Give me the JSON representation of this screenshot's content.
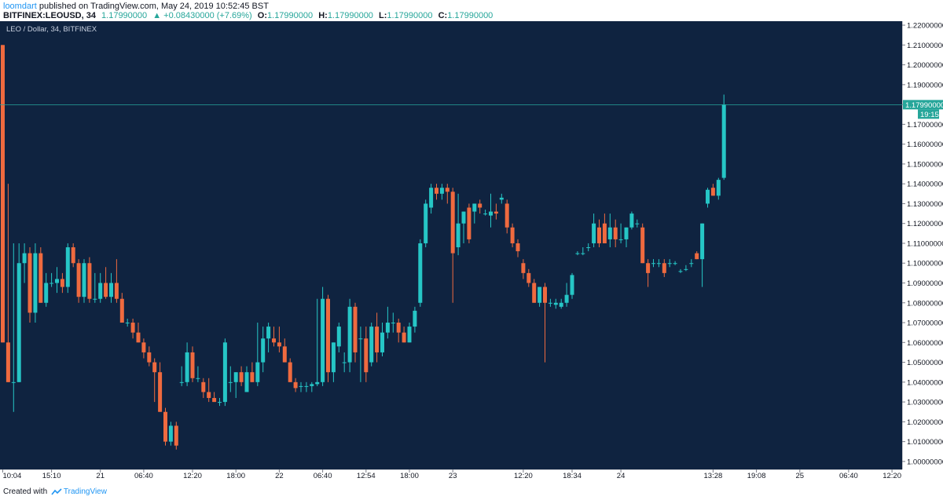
{
  "header": {
    "user": "loomdart",
    "published_text": " published on TradingView.com, May 24, 2019 10:52:45 BST",
    "symbol": "BITFINEX:LEOUSD, 34",
    "last": "1.17990000",
    "change": "+0.08430000 (+7.69%)",
    "o_label": "O:",
    "o_value": "1.17990000",
    "h_label": "H:",
    "h_value": "1.17990000",
    "l_label": "L:",
    "l_value": "1.17990000",
    "c_label": "C:",
    "c_value": "1.17990000"
  },
  "footer": {
    "created": "Created with",
    "brand": "TradingView"
  },
  "colors": {
    "background": "#131722",
    "pane": "#0f2340",
    "up": "#26c6c6",
    "down": "#ef6a3f",
    "axis_text": "#131722",
    "price_line": "#26a69a"
  },
  "icons": {
    "up_arrow": "triangle-up-icon",
    "brand": "tradingview-logo-icon"
  },
  "chart_data": {
    "type": "candlestick",
    "title": "LEO / Dollar, 34, BITFINEX",
    "ylim": [
      0.996,
      1.222
    ],
    "y_ticks": [
      "1.00000000",
      "1.01000000",
      "1.02000000",
      "1.03000000",
      "1.04000000",
      "1.05000000",
      "1.06000000",
      "1.07000000",
      "1.08000000",
      "1.09000000",
      "1.10000000",
      "1.11000000",
      "1.12000000",
      "1.13000000",
      "1.14000000",
      "1.15000000",
      "1.16000000",
      "1.17000000",
      "1.18000000",
      "1.19000000",
      "1.20000000",
      "1.21000000",
      "1.22000000"
    ],
    "x_ticks": [
      {
        "label": "10:04",
        "bar": 0
      },
      {
        "label": "15:10",
        "bar": 9
      },
      {
        "label": "21",
        "bar": 18
      },
      {
        "label": "06:40",
        "bar": 26
      },
      {
        "label": "12:20",
        "bar": 35
      },
      {
        "label": "18:00",
        "bar": 43
      },
      {
        "label": "22",
        "bar": 51
      },
      {
        "label": "06:40",
        "bar": 59
      },
      {
        "label": "12:54",
        "bar": 67
      },
      {
        "label": "18:00",
        "bar": 75
      },
      {
        "label": "23",
        "bar": 83
      },
      {
        "label": "12:20",
        "bar": 96
      },
      {
        "label": "18:34",
        "bar": 105
      },
      {
        "label": "24",
        "bar": 114
      },
      {
        "label": "13:28",
        "bar": 131
      },
      {
        "label": "19:08",
        "bar": 139
      },
      {
        "label": "25",
        "bar": 147
      },
      {
        "label": "06:40",
        "bar": 156
      },
      {
        "label": "12:20",
        "bar": 164
      }
    ],
    "last_price_label": "1.17990000",
    "countdown_label": "19:15",
    "last_price": 1.1799,
    "candles": [
      {
        "o": 1.21,
        "h": 1.21,
        "l": 1.06,
        "c": 1.06
      },
      {
        "o": 1.06,
        "h": 1.14,
        "l": 1.04,
        "c": 1.04
      },
      {
        "o": 1.04,
        "h": 1.11,
        "l": 1.025,
        "c": 1.04
      },
      {
        "o": 1.04,
        "h": 1.11,
        "l": 1.04,
        "c": 1.1
      },
      {
        "o": 1.1,
        "h": 1.11,
        "l": 1.09,
        "c": 1.105
      },
      {
        "o": 1.105,
        "h": 1.108,
        "l": 1.07,
        "c": 1.075
      },
      {
        "o": 1.075,
        "h": 1.11,
        "l": 1.07,
        "c": 1.105
      },
      {
        "o": 1.105,
        "h": 1.108,
        "l": 1.08,
        "c": 1.08
      },
      {
        "o": 1.08,
        "h": 1.095,
        "l": 1.078,
        "c": 1.09
      },
      {
        "o": 1.09,
        "h": 1.095,
        "l": 1.088,
        "c": 1.09
      },
      {
        "o": 1.09,
        "h": 1.098,
        "l": 1.085,
        "c": 1.092
      },
      {
        "o": 1.092,
        "h": 1.095,
        "l": 1.085,
        "c": 1.088
      },
      {
        "o": 1.088,
        "h": 1.11,
        "l": 1.085,
        "c": 1.108
      },
      {
        "o": 1.108,
        "h": 1.11,
        "l": 1.098,
        "c": 1.1
      },
      {
        "o": 1.1,
        "h": 1.102,
        "l": 1.08,
        "c": 1.083
      },
      {
        "o": 1.083,
        "h": 1.102,
        "l": 1.08,
        "c": 1.1
      },
      {
        "o": 1.1,
        "h": 1.103,
        "l": 1.08,
        "c": 1.082
      },
      {
        "o": 1.082,
        "h": 1.095,
        "l": 1.08,
        "c": 1.082
      },
      {
        "o": 1.082,
        "h": 1.095,
        "l": 1.08,
        "c": 1.09
      },
      {
        "o": 1.09,
        "h": 1.098,
        "l": 1.082,
        "c": 1.083
      },
      {
        "o": 1.083,
        "h": 1.095,
        "l": 1.08,
        "c": 1.09
      },
      {
        "o": 1.09,
        "h": 1.102,
        "l": 1.08,
        "c": 1.082
      },
      {
        "o": 1.082,
        "h": 1.085,
        "l": 1.07,
        "c": 1.07
      },
      {
        "o": 1.07,
        "h": 1.072,
        "l": 1.068,
        "c": 1.07
      },
      {
        "o": 1.07,
        "h": 1.072,
        "l": 1.062,
        "c": 1.065
      },
      {
        "o": 1.065,
        "h": 1.07,
        "l": 1.06,
        "c": 1.06
      },
      {
        "o": 1.06,
        "h": 1.062,
        "l": 1.052,
        "c": 1.055
      },
      {
        "o": 1.055,
        "h": 1.058,
        "l": 1.048,
        "c": 1.05
      },
      {
        "o": 1.05,
        "h": 1.052,
        "l": 1.03,
        "c": 1.045
      },
      {
        "o": 1.045,
        "h": 1.05,
        "l": 1.025,
        "c": 1.025
      },
      {
        "o": 1.025,
        "h": 1.027,
        "l": 1.008,
        "c": 1.01
      },
      {
        "o": 1.01,
        "h": 1.02,
        "l": 1.008,
        "c": 1.018
      },
      {
        "o": 1.018,
        "h": 1.02,
        "l": 1.006,
        "c": 1.008
      },
      {
        "o": 1.04,
        "h": 1.048,
        "l": 1.038,
        "c": 1.04
      },
      {
        "o": 1.04,
        "h": 1.06,
        "l": 1.038,
        "c": 1.055
      },
      {
        "o": 1.055,
        "h": 1.058,
        "l": 1.04,
        "c": 1.042
      },
      {
        "o": 1.042,
        "h": 1.048,
        "l": 1.04,
        "c": 1.042
      },
      {
        "o": 1.04,
        "h": 1.042,
        "l": 1.032,
        "c": 1.035
      },
      {
        "o": 1.035,
        "h": 1.042,
        "l": 1.03,
        "c": 1.032
      },
      {
        "o": 1.032,
        "h": 1.035,
        "l": 1.03,
        "c": 1.03
      },
      {
        "o": 1.03,
        "h": 1.032,
        "l": 1.028,
        "c": 1.03
      },
      {
        "o": 1.03,
        "h": 1.062,
        "l": 1.028,
        "c": 1.06
      },
      {
        "o": 1.04,
        "h": 1.048,
        "l": 1.035,
        "c": 1.04
      },
      {
        "o": 1.04,
        "h": 1.045,
        "l": 1.032,
        "c": 1.045
      },
      {
        "o": 1.045,
        "h": 1.048,
        "l": 1.038,
        "c": 1.04
      },
      {
        "o": 1.035,
        "h": 1.048,
        "l": 1.035,
        "c": 1.045
      },
      {
        "o": 1.045,
        "h": 1.05,
        "l": 1.04,
        "c": 1.04
      },
      {
        "o": 1.04,
        "h": 1.07,
        "l": 1.038,
        "c": 1.05
      },
      {
        "o": 1.05,
        "h": 1.068,
        "l": 1.045,
        "c": 1.062
      },
      {
        "o": 1.062,
        "h": 1.07,
        "l": 1.055,
        "c": 1.068
      },
      {
        "o": 1.062,
        "h": 1.068,
        "l": 1.058,
        "c": 1.06
      },
      {
        "o": 1.06,
        "h": 1.068,
        "l": 1.055,
        "c": 1.058
      },
      {
        "o": 1.058,
        "h": 1.062,
        "l": 1.05,
        "c": 1.05
      },
      {
        "o": 1.05,
        "h": 1.052,
        "l": 1.04,
        "c": 1.04
      },
      {
        "o": 1.04,
        "h": 1.042,
        "l": 1.035,
        "c": 1.037
      },
      {
        "o": 1.038,
        "h": 1.04,
        "l": 1.035,
        "c": 1.038
      },
      {
        "o": 1.038,
        "h": 1.04,
        "l": 1.035,
        "c": 1.038
      },
      {
        "o": 1.038,
        "h": 1.04,
        "l": 1.035,
        "c": 1.039
      },
      {
        "o": 1.039,
        "h": 1.082,
        "l": 1.038,
        "c": 1.04
      },
      {
        "o": 1.04,
        "h": 1.088,
        "l": 1.038,
        "c": 1.082
      },
      {
        "o": 1.082,
        "h": 1.084,
        "l": 1.04,
        "c": 1.045
      },
      {
        "o": 1.045,
        "h": 1.06,
        "l": 1.04,
        "c": 1.06
      },
      {
        "o": 1.058,
        "h": 1.07,
        "l": 1.055,
        "c": 1.068
      },
      {
        "o": 1.05,
        "h": 1.055,
        "l": 1.045,
        "c": 1.05
      },
      {
        "o": 1.05,
        "h": 1.082,
        "l": 1.045,
        "c": 1.078
      },
      {
        "o": 1.078,
        "h": 1.08,
        "l": 1.05,
        "c": 1.055
      },
      {
        "o": 1.062,
        "h": 1.068,
        "l": 1.04,
        "c": 1.062
      },
      {
        "o": 1.062,
        "h": 1.068,
        "l": 1.04,
        "c": 1.045
      },
      {
        "o": 1.05,
        "h": 1.07,
        "l": 1.048,
        "c": 1.068
      },
      {
        "o": 1.068,
        "h": 1.075,
        "l": 1.05,
        "c": 1.055
      },
      {
        "o": 1.055,
        "h": 1.07,
        "l": 1.053,
        "c": 1.065
      },
      {
        "o": 1.065,
        "h": 1.078,
        "l": 1.062,
        "c": 1.07
      },
      {
        "o": 1.07,
        "h": 1.075,
        "l": 1.065,
        "c": 1.07
      },
      {
        "o": 1.07,
        "h": 1.072,
        "l": 1.06,
        "c": 1.065
      },
      {
        "o": 1.065,
        "h": 1.068,
        "l": 1.06,
        "c": 1.06
      },
      {
        "o": 1.06,
        "h": 1.07,
        "l": 1.06,
        "c": 1.068
      },
      {
        "o": 1.068,
        "h": 1.078,
        "l": 1.065,
        "c": 1.076
      },
      {
        "o": 1.08,
        "h": 1.112,
        "l": 1.078,
        "c": 1.11
      },
      {
        "o": 1.11,
        "h": 1.132,
        "l": 1.108,
        "c": 1.13
      },
      {
        "o": 1.128,
        "h": 1.14,
        "l": 1.125,
        "c": 1.138
      },
      {
        "o": 1.138,
        "h": 1.14,
        "l": 1.132,
        "c": 1.135
      },
      {
        "o": 1.135,
        "h": 1.14,
        "l": 1.132,
        "c": 1.138
      },
      {
        "o": 1.138,
        "h": 1.14,
        "l": 1.13,
        "c": 1.136
      },
      {
        "o": 1.136,
        "h": 1.138,
        "l": 1.08,
        "c": 1.105
      },
      {
        "o": 1.108,
        "h": 1.135,
        "l": 1.104,
        "c": 1.12
      },
      {
        "o": 1.12,
        "h": 1.126,
        "l": 1.11,
        "c": 1.126
      },
      {
        "o": 1.128,
        "h": 1.13,
        "l": 1.11,
        "c": 1.112
      },
      {
        "o": 1.126,
        "h": 1.13,
        "l": 1.12,
        "c": 1.13
      },
      {
        "o": 1.13,
        "h": 1.132,
        "l": 1.125,
        "c": 1.128
      },
      {
        "o": 1.125,
        "h": 1.127,
        "l": 1.124,
        "c": 1.125
      },
      {
        "o": 1.124,
        "h": 1.135,
        "l": 1.118,
        "c": 1.126
      },
      {
        "o": 1.126,
        "h": 1.13,
        "l": 1.122,
        "c": 1.125
      },
      {
        "o": 1.132,
        "h": 1.135,
        "l": 1.13,
        "c": 1.133
      },
      {
        "o": 1.13,
        "h": 1.132,
        "l": 1.115,
        "c": 1.118
      },
      {
        "o": 1.118,
        "h": 1.12,
        "l": 1.108,
        "c": 1.11
      },
      {
        "o": 1.11,
        "h": 1.112,
        "l": 1.103,
        "c": 1.106
      },
      {
        "o": 1.1,
        "h": 1.102,
        "l": 1.092,
        "c": 1.095
      },
      {
        "o": 1.095,
        "h": 1.097,
        "l": 1.088,
        "c": 1.09
      },
      {
        "o": 1.09,
        "h": 1.092,
        "l": 1.08,
        "c": 1.08
      },
      {
        "o": 1.08,
        "h": 1.088,
        "l": 1.078,
        "c": 1.088
      },
      {
        "o": 1.088,
        "h": 1.09,
        "l": 1.05,
        "c": 1.08
      },
      {
        "o": 1.08,
        "h": 1.082,
        "l": 1.078,
        "c": 1.08
      },
      {
        "o": 1.079,
        "h": 1.082,
        "l": 1.077,
        "c": 1.08
      },
      {
        "o": 1.078,
        "h": 1.082,
        "l": 1.077,
        "c": 1.08
      },
      {
        "o": 1.08,
        "h": 1.09,
        "l": 1.078,
        "c": 1.084
      },
      {
        "o": 1.084,
        "h": 1.095,
        "l": 1.082,
        "c": 1.094
      },
      {
        "o": 1.105,
        "h": 1.106,
        "l": 1.104,
        "c": 1.105
      },
      {
        "o": 1.105,
        "h": 1.108,
        "l": 1.104,
        "c": 1.105
      },
      {
        "o": 1.108,
        "h": 1.11,
        "l": 1.106,
        "c": 1.108
      },
      {
        "o": 1.11,
        "h": 1.125,
        "l": 1.108,
        "c": 1.12
      },
      {
        "o": 1.118,
        "h": 1.122,
        "l": 1.108,
        "c": 1.11
      },
      {
        "o": 1.12,
        "h": 1.125,
        "l": 1.112,
        "c": 1.11
      },
      {
        "o": 1.112,
        "h": 1.125,
        "l": 1.108,
        "c": 1.118
      },
      {
        "o": 1.118,
        "h": 1.122,
        "l": 1.108,
        "c": 1.112
      },
      {
        "o": 1.112,
        "h": 1.12,
        "l": 1.11,
        "c": 1.112
      },
      {
        "o": 1.112,
        "h": 1.118,
        "l": 1.108,
        "c": 1.118
      },
      {
        "o": 1.118,
        "h": 1.126,
        "l": 1.117,
        "c": 1.125
      },
      {
        "o": 1.12,
        "h": 1.122,
        "l": 1.118,
        "c": 1.12
      },
      {
        "o": 1.118,
        "h": 1.12,
        "l": 1.1,
        "c": 1.1
      },
      {
        "o": 1.1,
        "h": 1.102,
        "l": 1.088,
        "c": 1.095
      },
      {
        "o": 1.1,
        "h": 1.102,
        "l": 1.098,
        "c": 1.1
      },
      {
        "o": 1.1,
        "h": 1.102,
        "l": 1.098,
        "c": 1.1
      },
      {
        "o": 1.1,
        "h": 1.102,
        "l": 1.093,
        "c": 1.095
      },
      {
        "o": 1.1,
        "h": 1.102,
        "l": 1.098,
        "c": 1.1
      },
      {
        "o": 1.1,
        "h": 1.101,
        "l": 1.099,
        "c": 1.1
      },
      {
        "o": 1.096,
        "h": 1.097,
        "l": 1.095,
        "c": 1.096
      },
      {
        "o": 1.097,
        "h": 1.099,
        "l": 1.096,
        "c": 1.097
      },
      {
        "o": 1.1,
        "h": 1.102,
        "l": 1.098,
        "c": 1.1
      },
      {
        "o": 1.105,
        "h": 1.106,
        "l": 1.102,
        "c": 1.102
      },
      {
        "o": 1.102,
        "h": 1.12,
        "l": 1.088,
        "c": 1.12
      },
      {
        "o": 1.13,
        "h": 1.138,
        "l": 1.128,
        "c": 1.137
      },
      {
        "o": 1.138,
        "h": 1.14,
        "l": 1.134,
        "c": 1.134
      },
      {
        "o": 1.134,
        "h": 1.143,
        "l": 1.132,
        "c": 1.142
      },
      {
        "o": 1.143,
        "h": 1.185,
        "l": 1.142,
        "c": 1.18
      }
    ]
  }
}
